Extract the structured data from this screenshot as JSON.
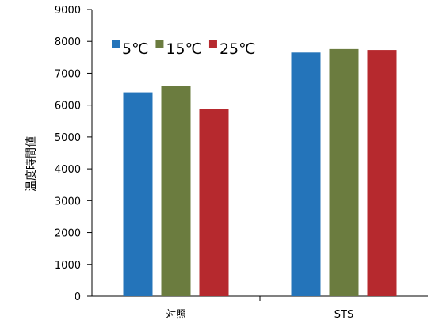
{
  "chart_data": {
    "type": "bar",
    "title": "",
    "xlabel": "",
    "ylabel": "温度時間値",
    "categories": [
      "対照",
      "STS"
    ],
    "series": [
      {
        "name": "5℃",
        "values": [
          6400,
          7650
        ],
        "color": "#2474BA"
      },
      {
        "name": "15℃",
        "values": [
          6600,
          7760
        ],
        "color": "#6B7C3F"
      },
      {
        "name": "25℃",
        "values": [
          5870,
          7730
        ],
        "color": "#B6292E"
      }
    ],
    "ylim": [
      0,
      9000
    ],
    "yticks": [
      0,
      1000,
      2000,
      3000,
      4000,
      5000,
      6000,
      7000,
      8000,
      9000
    ],
    "grid": false,
    "legend": "top-left"
  }
}
